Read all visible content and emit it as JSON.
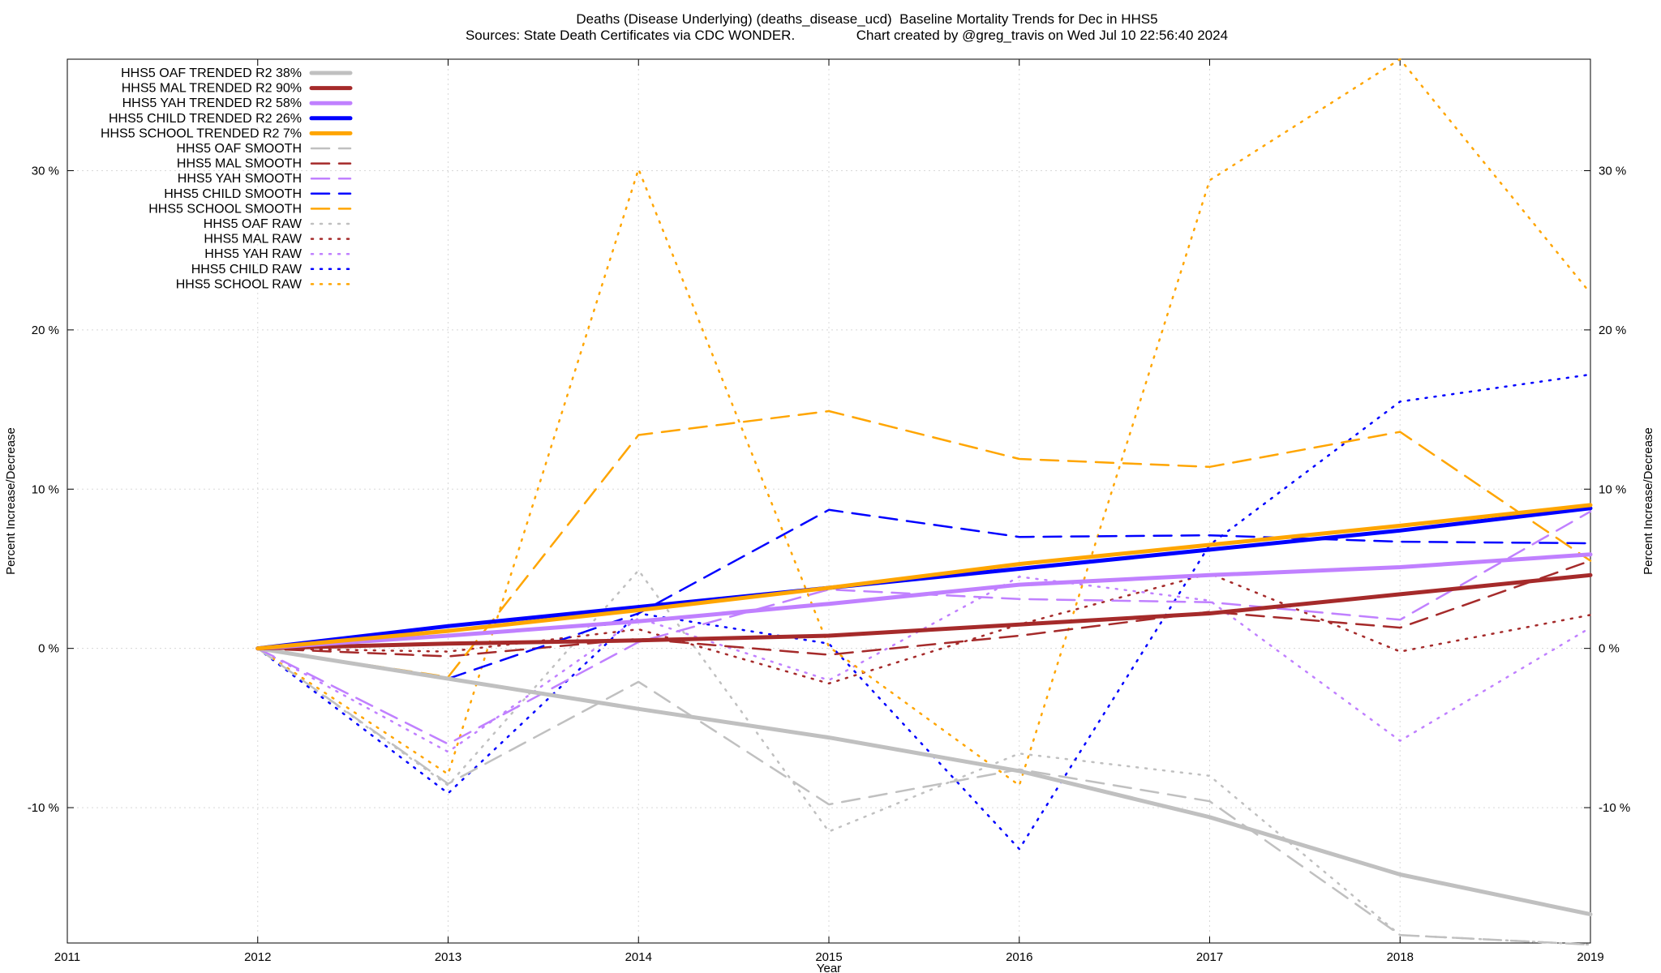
{
  "title_lines": [
    "Deaths (Disease Underlying) (deaths_disease_ucd)  Baseline Mortality Trends for Dec in HHS5",
    "Sources: State Death Certificates via CDC WONDER.                Chart created by @greg_travis on Wed Jul 10 22:56:40 2024"
  ],
  "chart_data": {
    "type": "line",
    "xlabel": "Year",
    "ylabel": "Percent Increase/Decrease",
    "ylabel_right": "Percent Increase/Decrease",
    "xlim": [
      2011,
      2019
    ],
    "ylim": [
      -18.5,
      37
    ],
    "x_ticks": [
      "2011",
      "2012",
      "2013",
      "2014",
      "2015",
      "2016",
      "2017",
      "2018",
      "2019"
    ],
    "y_ticks": [
      {
        "value": -10,
        "label": "-10 %"
      },
      {
        "value": 0,
        "label": "0 %"
      },
      {
        "value": 10,
        "label": "10 %"
      },
      {
        "value": 20,
        "label": "20 %"
      },
      {
        "value": 30,
        "label": "30 %"
      }
    ],
    "grid": true,
    "legend_position": "top-left",
    "x": [
      2012,
      2013,
      2014,
      2015,
      2016,
      2017,
      2018,
      2019
    ],
    "series": [
      {
        "name": "HHS5 OAF TRENDED R2  38%",
        "style": "trended",
        "color": "#c0c0c0",
        "values": [
          0,
          -1.9,
          -3.8,
          -5.6,
          -7.7,
          -10.6,
          -14.2,
          -16.7
        ]
      },
      {
        "name": "HHS5 MAL TRENDED R2  90%",
        "style": "trended",
        "color": "#a52a2a",
        "values": [
          0,
          0.3,
          0.5,
          0.8,
          1.5,
          2.2,
          3.4,
          4.6
        ]
      },
      {
        "name": "HHS5 YAH TRENDED R2  58%",
        "style": "trended",
        "color": "#c080ff",
        "values": [
          0,
          0.8,
          1.7,
          2.8,
          4.0,
          4.6,
          5.1,
          5.9
        ]
      },
      {
        "name": "HHS5 CHILD TRENDED R2  26%",
        "style": "trended",
        "color": "#0000ff",
        "values": [
          0,
          1.4,
          2.6,
          3.8,
          5.0,
          6.2,
          7.4,
          8.8
        ]
      },
      {
        "name": "HHS5 SCHOOL TRENDED R2   7%",
        "style": "trended",
        "color": "#ffa500",
        "values": [
          0,
          1.1,
          2.4,
          3.8,
          5.3,
          6.5,
          7.7,
          9.0
        ]
      },
      {
        "name": "HHS5 OAF SMOOTH",
        "style": "smooth",
        "color": "#c0c0c0",
        "values": [
          0,
          -8.5,
          -2.1,
          -9.8,
          -7.6,
          -9.6,
          -18.0,
          -18.6
        ]
      },
      {
        "name": "HHS5 MAL SMOOTH",
        "style": "smooth",
        "color": "#a52a2a",
        "values": [
          0,
          -0.5,
          0.6,
          -0.4,
          0.8,
          2.3,
          1.3,
          5.5
        ]
      },
      {
        "name": "HHS5 YAH SMOOTH",
        "style": "smooth",
        "color": "#c080ff",
        "values": [
          0,
          -6.0,
          0.4,
          3.7,
          3.1,
          2.9,
          1.8,
          8.6
        ]
      },
      {
        "name": "HHS5 CHILD SMOOTH",
        "style": "smooth",
        "color": "#0000ff",
        "values": [
          0,
          -1.9,
          2.2,
          8.7,
          7.0,
          7.1,
          6.7,
          6.6
        ]
      },
      {
        "name": "HHS5 SCHOOL SMOOTH",
        "style": "smooth",
        "color": "#ffa500",
        "values": [
          0,
          -1.8,
          13.4,
          14.9,
          11.9,
          11.4,
          13.6,
          5.5
        ]
      },
      {
        "name": "HHS5 OAF RAW",
        "style": "raw",
        "color": "#c0c0c0",
        "values": [
          0,
          -8.6,
          4.9,
          -11.5,
          -6.6,
          -8.0,
          -18.0,
          -18.6
        ]
      },
      {
        "name": "HHS5 MAL RAW",
        "style": "raw",
        "color": "#a52a2a",
        "values": [
          0,
          -0.2,
          1.2,
          -2.2,
          1.5,
          4.7,
          -0.2,
          2.1
        ]
      },
      {
        "name": "HHS5 YAH RAW",
        "style": "raw",
        "color": "#c080ff",
        "values": [
          0,
          -6.5,
          1.9,
          -2.0,
          4.5,
          3.0,
          -5.8,
          1.3
        ]
      },
      {
        "name": "HHS5 CHILD RAW",
        "style": "raw",
        "color": "#0000ff",
        "values": [
          0,
          -9.1,
          2.2,
          0.3,
          -12.6,
          6.5,
          15.5,
          17.2
        ]
      },
      {
        "name": "HHS5 SCHOOL RAW",
        "style": "raw",
        "color": "#ffa500",
        "values": [
          0,
          -7.9,
          30.1,
          0.1,
          -8.6,
          29.4,
          37.0,
          22.3
        ]
      }
    ]
  }
}
